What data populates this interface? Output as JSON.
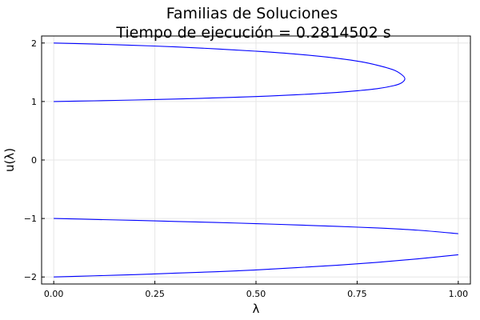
{
  "chart_data": {
    "type": "line",
    "title": "Familias de Soluciones",
    "subtitle": "Tiempo de ejecución = 0.2814502 s",
    "xlabel": "λ",
    "ylabel": "u(λ)",
    "xlim": [
      -0.03,
      1.03
    ],
    "ylim": [
      -2.12,
      2.12
    ],
    "xticks": [
      0.0,
      0.25,
      0.5,
      0.75,
      1.0
    ],
    "xtick_labels": [
      "0.00",
      "0.25",
      "0.50",
      "0.75",
      "1.00"
    ],
    "yticks": [
      -2,
      -1,
      0,
      1,
      2
    ],
    "ytick_labels": [
      "−2",
      "−1",
      "0",
      "1",
      "2"
    ],
    "grid": true,
    "legend": "none",
    "line_color": "#0000ff",
    "series": [
      {
        "x": [
          0.0,
          0.1,
          0.2,
          0.3,
          0.4,
          0.5,
          0.6,
          0.7,
          0.76,
          0.8,
          0.84,
          0.86,
          0.868,
          0.86,
          0.84,
          0.8,
          0.76,
          0.7,
          0.6,
          0.5,
          0.4,
          0.3,
          0.2,
          0.1,
          0.0
        ],
        "y": [
          1.0,
          1.012,
          1.026,
          1.042,
          1.062,
          1.085,
          1.115,
          1.155,
          1.19,
          1.22,
          1.27,
          1.32,
          1.39,
          1.46,
          1.54,
          1.62,
          1.68,
          1.74,
          1.81,
          1.86,
          1.9,
          1.935,
          1.96,
          1.982,
          2.0
        ]
      },
      {
        "x": [
          0.0,
          0.1,
          0.2,
          0.3,
          0.4,
          0.5,
          0.6,
          0.7,
          0.8,
          0.9,
          1.0
        ],
        "y": [
          -1.0,
          -1.016,
          -1.032,
          -1.05,
          -1.068,
          -1.088,
          -1.11,
          -1.135,
          -1.162,
          -1.2,
          -1.26
        ]
      },
      {
        "x": [
          0.0,
          0.1,
          0.2,
          0.3,
          0.4,
          0.5,
          0.6,
          0.7,
          0.8,
          0.9,
          1.0
        ],
        "y": [
          -2.0,
          -1.98,
          -1.96,
          -1.935,
          -1.91,
          -1.88,
          -1.84,
          -1.8,
          -1.75,
          -1.69,
          -1.62
        ]
      }
    ]
  }
}
